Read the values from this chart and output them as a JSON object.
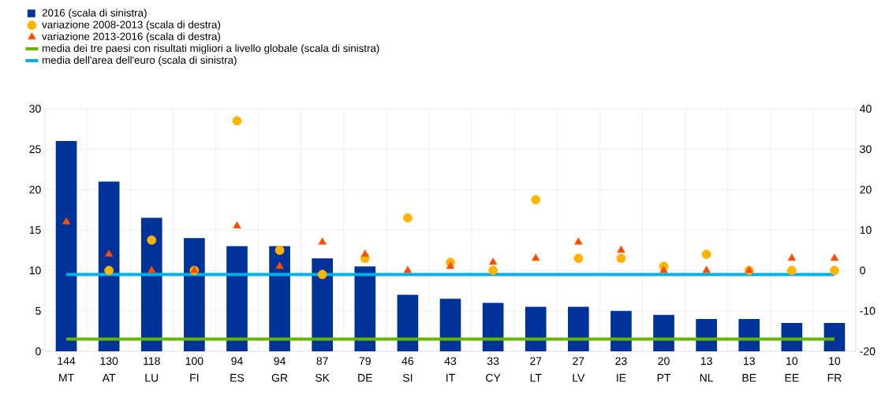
{
  "chart_data": {
    "type": "bar",
    "categories": [
      "MT",
      "AT",
      "LU",
      "FI",
      "ES",
      "GR",
      "SK",
      "DE",
      "SI",
      "IT",
      "CY",
      "LT",
      "LV",
      "IE",
      "PT",
      "NL",
      "BE",
      "EE",
      "FR"
    ],
    "annotations": [
      "144",
      "130",
      "118",
      "100",
      "94",
      "94",
      "87",
      "79",
      "46",
      "43",
      "33",
      "27",
      "27",
      "23",
      "20",
      "13",
      "13",
      "10",
      "10"
    ],
    "series": [
      {
        "name": "2016 (scala di sinistra)",
        "color": "#003399",
        "values": [
          26,
          21,
          16.5,
          14,
          13,
          13,
          11.5,
          10.5,
          7,
          6.5,
          6,
          5.5,
          5.5,
          5,
          4.5,
          4,
          4,
          3.5,
          3.5
        ]
      },
      {
        "name": "variazione 2008-2013 (scala di destra)",
        "type": "scatter",
        "marker": "circle",
        "axis": "y2",
        "color": "#ffb400",
        "values": [
          null,
          0,
          7.5,
          0,
          37,
          5,
          -1,
          3,
          13,
          2,
          0,
          17.5,
          3,
          3,
          1,
          4,
          0,
          0,
          0
        ]
      },
      {
        "name": "variazione 2013-2016 (scala di destra)",
        "type": "scatter",
        "marker": "triangle",
        "axis": "y2",
        "color": "#ff4b00",
        "values": [
          12,
          4,
          0,
          0,
          11,
          1,
          7,
          4,
          0,
          1,
          2,
          3,
          7,
          5,
          0,
          0,
          0,
          3,
          3
        ]
      },
      {
        "name": "media dei tre paesi con risultati migliori a livello globale (scala di sinistra)",
        "type": "line",
        "color": "#65b800",
        "values": [
          1.5,
          1.5,
          1.5,
          1.5,
          1.5,
          1.5,
          1.5,
          1.5,
          1.5,
          1.5,
          1.5,
          1.5,
          1.5,
          1.5,
          1.5,
          1.5,
          1.5,
          1.5,
          1.5
        ]
      },
      {
        "name": "media dell'area dell'euro (scala di sinistra)",
        "type": "line",
        "color": "#00b1ea",
        "values": [
          9.5,
          9.5,
          9.5,
          9.5,
          9.5,
          9.5,
          9.5,
          9.5,
          9.5,
          9.5,
          9.5,
          9.5,
          9.5,
          9.5,
          9.5,
          9.5,
          9.5,
          9.5,
          9.5
        ]
      }
    ],
    "ylim": [
      0,
      30
    ],
    "yticks": [
      0,
      5,
      10,
      15,
      20,
      25,
      30
    ],
    "y2lim": [
      -20,
      40
    ],
    "y2ticks": [
      -20,
      -10,
      0,
      10,
      20,
      30,
      40
    ],
    "grid": true,
    "legend": "top left"
  }
}
